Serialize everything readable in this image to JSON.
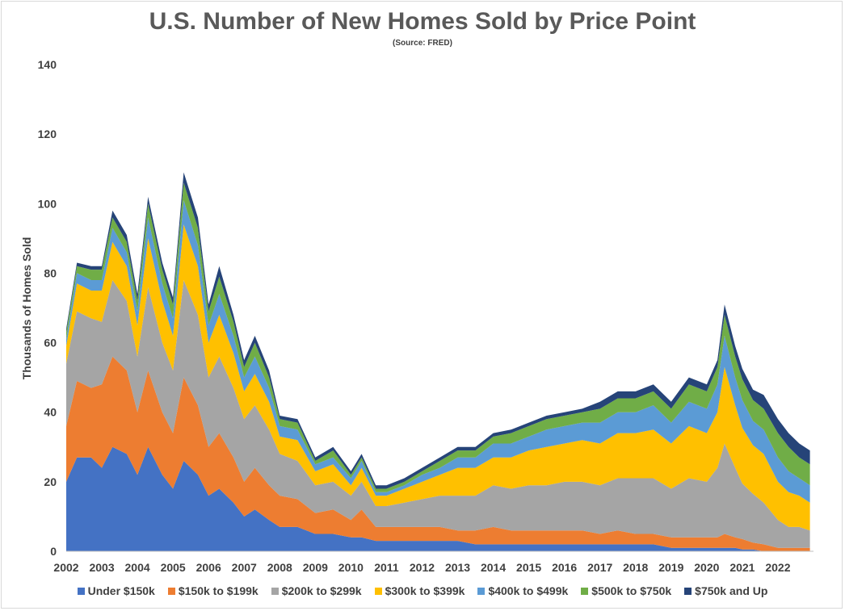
{
  "title": "U.S. Number of New Homes Sold by Price Point",
  "subtitle": "(Source: FRED)",
  "chart_data": {
    "type": "area",
    "stacked": true,
    "title": "U.S. Number of New Homes Sold by Price Point",
    "subtitle": "(Source: FRED)",
    "xlabel": "",
    "ylabel": "Thousands of Homes Sold",
    "ylim": [
      0,
      140
    ],
    "yticks": [
      0,
      20,
      40,
      60,
      80,
      100,
      120,
      140
    ],
    "xlim": [
      2002,
      2023
    ],
    "xticks": [
      "2002",
      "2003",
      "2004",
      "2005",
      "2006",
      "2007",
      "2008",
      "2009",
      "2010",
      "2011",
      "2012",
      "2013",
      "2014",
      "2015",
      "2016",
      "2017",
      "2018",
      "2019",
      "2020",
      "2021",
      "2022"
    ],
    "grid": false,
    "legend_position": "bottom",
    "x": [
      2002.0,
      2002.3,
      2002.7,
      2003.0,
      2003.3,
      2003.7,
      2004.0,
      2004.3,
      2004.7,
      2005.0,
      2005.3,
      2005.7,
      2006.0,
      2006.3,
      2006.7,
      2007.0,
      2007.3,
      2007.7,
      2008.0,
      2008.5,
      2009.0,
      2009.5,
      2010.0,
      2010.3,
      2010.7,
      2011.0,
      2011.5,
      2012.0,
      2012.5,
      2013.0,
      2013.5,
      2014.0,
      2014.5,
      2015.0,
      2015.5,
      2016.0,
      2016.5,
      2017.0,
      2017.5,
      2018.0,
      2018.5,
      2019.0,
      2019.5,
      2020.0,
      2020.3,
      2020.5,
      2020.8,
      2021.0,
      2021.3,
      2021.6,
      2022.0,
      2022.3,
      2022.6,
      2022.9
    ],
    "series": [
      {
        "name": "Under $150k",
        "color": "#4472C4",
        "values": [
          20,
          27,
          27,
          24,
          30,
          28,
          22,
          30,
          22,
          18,
          26,
          22,
          16,
          18,
          14,
          10,
          12,
          9,
          7,
          7,
          5,
          5,
          4,
          4,
          3,
          3,
          3,
          3,
          3,
          3,
          2,
          2,
          2,
          2,
          2,
          2,
          2,
          2,
          2,
          2,
          2,
          1,
          1,
          1,
          1,
          1,
          1,
          0.5,
          0.5,
          0,
          0,
          0,
          0,
          0
        ]
      },
      {
        "name": "$150k to $199k",
        "color": "#ED7D31",
        "values": [
          16,
          22,
          20,
          24,
          26,
          24,
          18,
          22,
          18,
          16,
          24,
          20,
          14,
          16,
          13,
          10,
          12,
          10,
          9,
          8,
          6,
          7,
          5,
          8,
          4,
          4,
          4,
          4,
          4,
          3,
          4,
          5,
          4,
          4,
          4,
          4,
          4,
          3,
          4,
          3,
          3,
          3,
          3,
          3,
          3,
          4,
          3,
          3,
          2,
          2,
          1,
          1,
          1,
          1
        ]
      },
      {
        "name": "$200k to $299k",
        "color": "#A5A5A5",
        "values": [
          18,
          20,
          20,
          18,
          22,
          20,
          16,
          24,
          20,
          18,
          28,
          26,
          20,
          22,
          20,
          18,
          18,
          16,
          12,
          11,
          8,
          8,
          7,
          8,
          6,
          6,
          7,
          8,
          9,
          10,
          10,
          12,
          12,
          13,
          13,
          14,
          14,
          14,
          15,
          16,
          16,
          14,
          17,
          16,
          20,
          26,
          20,
          16,
          14,
          12,
          8,
          6,
          6,
          5
        ]
      },
      {
        "name": "$300k to $399k",
        "color": "#FFC000",
        "values": [
          5,
          8,
          8,
          9,
          11,
          10,
          9,
          14,
          12,
          10,
          16,
          14,
          10,
          12,
          10,
          8,
          9,
          8,
          5,
          6,
          4,
          5,
          3,
          4,
          3,
          3,
          4,
          5,
          6,
          8,
          8,
          8,
          9,
          10,
          11,
          11,
          12,
          12,
          13,
          13,
          14,
          13,
          15,
          14,
          16,
          22,
          18,
          16,
          14,
          14,
          11,
          10,
          9,
          8
        ]
      },
      {
        "name": "$400k to $499k",
        "color": "#5B9BD5",
        "values": [
          2,
          3,
          3,
          3,
          4,
          4,
          4,
          6,
          5,
          5,
          7,
          6,
          5,
          6,
          5,
          4,
          5,
          4,
          3,
          3,
          2,
          2,
          2,
          2,
          1,
          1,
          1,
          2,
          2,
          3,
          3,
          4,
          4,
          4,
          5,
          5,
          5,
          6,
          6,
          6,
          7,
          6,
          7,
          7,
          8,
          9,
          8,
          8,
          7,
          7,
          7,
          6,
          5,
          5
        ]
      },
      {
        "name": "$500k to $750k",
        "color": "#70AD47",
        "values": [
          2,
          2,
          3,
          3,
          3,
          3,
          3,
          4,
          4,
          4,
          5,
          5,
          4,
          5,
          4,
          3,
          4,
          3,
          2,
          2,
          1,
          2,
          1,
          1,
          1,
          1,
          1,
          1,
          2,
          2,
          2,
          2,
          3,
          3,
          3,
          3,
          3,
          4,
          4,
          4,
          4,
          4,
          5,
          5,
          5,
          6,
          6,
          6,
          6,
          6,
          7,
          7,
          6,
          6
        ]
      },
      {
        "name": "$750k and Up",
        "color": "#264478",
        "values": [
          1,
          1,
          1,
          1,
          2,
          2,
          2,
          2,
          2,
          2,
          3,
          3,
          2,
          3,
          2,
          2,
          2,
          2,
          1,
          1,
          1,
          1,
          1,
          1,
          1,
          1,
          1,
          1,
          1,
          1,
          1,
          1,
          1,
          1,
          1,
          1,
          1,
          2,
          2,
          2,
          2,
          2,
          2,
          2,
          2,
          3,
          3,
          3,
          3,
          4,
          4,
          4,
          4,
          4
        ]
      }
    ]
  }
}
